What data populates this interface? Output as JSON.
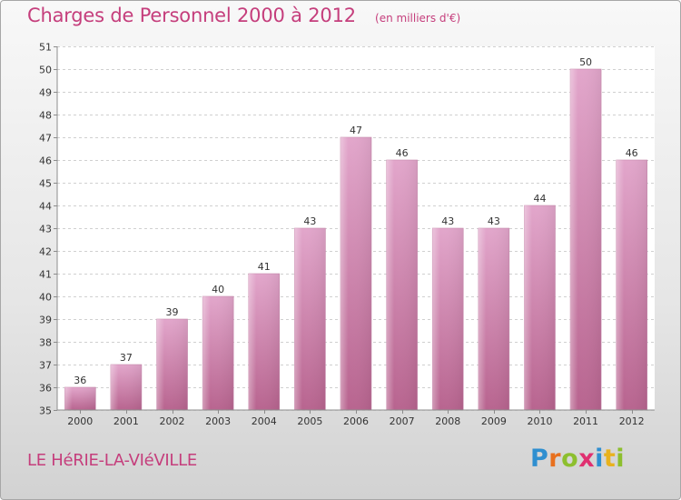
{
  "chart_data": {
    "type": "bar",
    "title": "Charges de Personnel 2000 à 2012",
    "subtitle": "(en milliers d'€)",
    "categories": [
      "2000",
      "2001",
      "2002",
      "2003",
      "2004",
      "2005",
      "2006",
      "2007",
      "2008",
      "2009",
      "2010",
      "2011",
      "2012"
    ],
    "values": [
      36,
      37,
      39,
      40,
      41,
      43,
      47,
      46,
      43,
      43,
      44,
      50,
      46
    ],
    "xlabel": "",
    "ylabel": "",
    "ylim": [
      35,
      51
    ],
    "yticks": [
      35,
      36,
      37,
      38,
      39,
      40,
      41,
      42,
      43,
      44,
      45,
      46,
      47,
      48,
      49,
      50,
      51
    ],
    "grid": true,
    "bar_color": "#d88db5",
    "title_color": "#c53e7c"
  },
  "commune_name": "LE HéRIE-LA-VIéVILLE",
  "brand": {
    "letters": [
      "P",
      "r",
      "o",
      "x",
      "i",
      "t",
      "i"
    ],
    "colors": [
      "#2f8fd0",
      "#e8701e",
      "#8dbf2e",
      "#e03070",
      "#2f8fd0",
      "#e8b21e",
      "#8dbf2e"
    ]
  }
}
